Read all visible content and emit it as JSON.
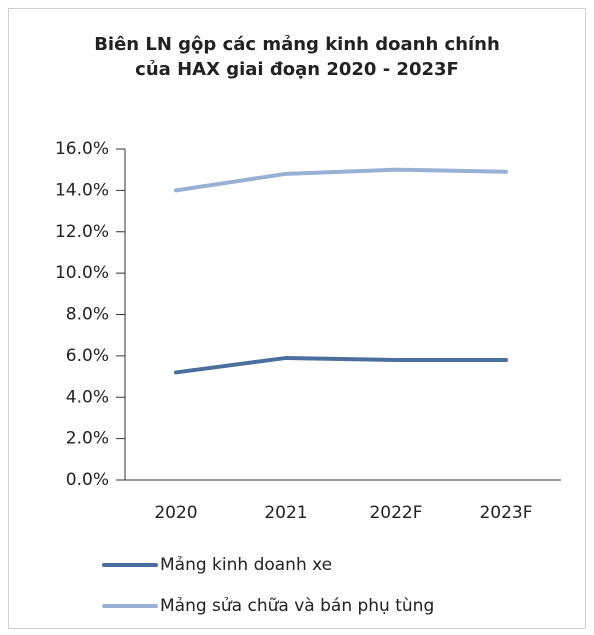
{
  "chart_data": {
    "type": "line",
    "title": "Biên LN gộp các mảng kinh doanh chính của HAX giai đoạn 2020 - 2023F",
    "categories": [
      "2020",
      "2021",
      "2022F",
      "2023F"
    ],
    "series": [
      {
        "name": "Mảng kinh doanh xe",
        "color": "#4a6f9f",
        "values": [
          5.2,
          5.9,
          5.8,
          5.8
        ]
      },
      {
        "name": "Mảng sửa chữa và bán phụ tùng",
        "color": "#98b0d3",
        "values": [
          14.0,
          14.8,
          15.0,
          14.9
        ]
      }
    ],
    "ylim": [
      0,
      16
    ],
    "yticks": [
      {
        "value": 0,
        "label": "0.0%"
      },
      {
        "value": 2,
        "label": "2.0%"
      },
      {
        "value": 4,
        "label": "4.0%"
      },
      {
        "value": 6,
        "label": "6.0%"
      },
      {
        "value": 8,
        "label": "8.0%"
      },
      {
        "value": 10,
        "label": "10.0%"
      },
      {
        "value": 12,
        "label": "12.0%"
      },
      {
        "value": 14,
        "label": "14.0%"
      },
      {
        "value": 16,
        "label": "16.0%"
      }
    ],
    "grid": false,
    "legend": "bottom"
  }
}
